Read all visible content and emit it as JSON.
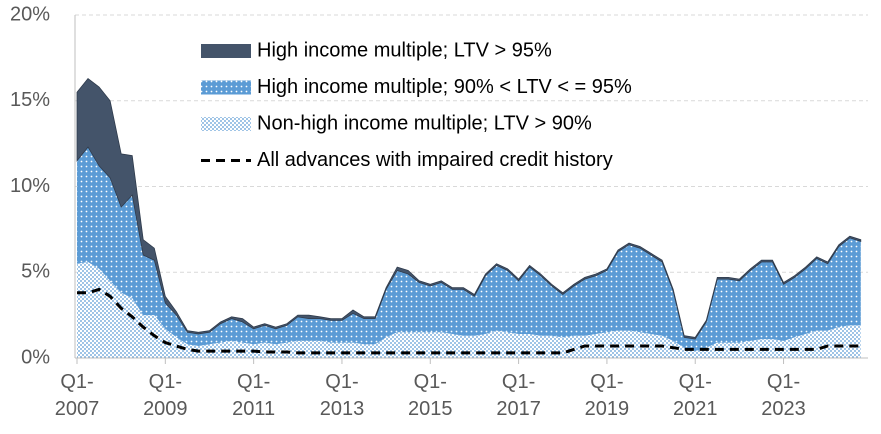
{
  "chart_data": {
    "type": "stacked_area",
    "categories": [
      "Q1-2007",
      null,
      null,
      null,
      null,
      null,
      null,
      null,
      "Q1-2009",
      null,
      null,
      null,
      null,
      null,
      null,
      null,
      "Q1-2011",
      null,
      null,
      null,
      null,
      null,
      null,
      null,
      "Q1-2013",
      null,
      null,
      null,
      null,
      null,
      null,
      null,
      "Q1-2015",
      null,
      null,
      null,
      null,
      null,
      null,
      null,
      "Q1-2017",
      null,
      null,
      null,
      null,
      null,
      null,
      null,
      "Q1-2019",
      null,
      null,
      null,
      null,
      null,
      null,
      null,
      "Q1-2021",
      null,
      null,
      null,
      null,
      null,
      null,
      null,
      "Q1-2023",
      null,
      null,
      null,
      null,
      null,
      null,
      null
    ],
    "series": [
      {
        "name": "High income multiple; LTV > 95%",
        "color": "#44546a",
        "fill": "solid",
        "values": [
          4.0,
          4.0,
          4.6,
          4.5,
          3.1,
          2.3,
          0.9,
          0.7,
          0.4,
          0.2,
          0.1,
          0.1,
          0.1,
          0.1,
          0.1,
          0.2,
          0.1,
          0.1,
          0.1,
          0.1,
          0.1,
          0.2,
          0.1,
          0.1,
          0.1,
          0.2,
          0.1,
          0.1,
          0.1,
          0.2,
          0.2,
          0.1,
          0.1,
          0.1,
          0.1,
          0.1,
          0.1,
          0.1,
          0.1,
          0.1,
          0.1,
          0.1,
          0.1,
          0.1,
          0.1,
          0.1,
          0.1,
          0.1,
          0.1,
          0.1,
          0.1,
          0.1,
          0.1,
          0.1,
          0.1,
          0.1,
          0.1,
          0.1,
          0.1,
          0.1,
          0.1,
          0.1,
          0.1,
          0.1,
          0.1,
          0.1,
          0.1,
          0.1,
          0.1,
          0.1,
          0.1,
          0.1
        ]
      },
      {
        "name": "High income multiple; 90% < LTV < = 95%",
        "color": "#5b9bd5",
        "fill": "dotted",
        "values": [
          6.0,
          6.7,
          6.0,
          6.0,
          5.0,
          6.0,
          3.5,
          3.2,
          1.5,
          1.3,
          0.7,
          0.7,
          0.7,
          1.1,
          1.3,
          1.2,
          0.9,
          1.0,
          0.9,
          1.0,
          1.4,
          1.3,
          1.3,
          1.3,
          1.3,
          1.7,
          1.5,
          1.5,
          2.8,
          3.6,
          3.4,
          2.9,
          2.7,
          2.9,
          2.6,
          2.7,
          2.3,
          3.4,
          3.8,
          3.6,
          3.1,
          3.9,
          3.5,
          2.9,
          2.5,
          2.9,
          3.3,
          3.4,
          3.6,
          4.6,
          5.0,
          4.9,
          4.6,
          4.3,
          2.9,
          0.6,
          0.7,
          1.5,
          3.7,
          3.7,
          3.6,
          4.1,
          4.5,
          4.5,
          3.3,
          3.5,
          3.8,
          4.2,
          3.9,
          4.7,
          5.1,
          4.9
        ]
      },
      {
        "name": "Non-high income multiple; LTV > 90%",
        "color": "#5b9bd5",
        "fill": "light-dotted",
        "values": [
          5.5,
          5.6,
          5.2,
          4.5,
          3.8,
          3.5,
          2.5,
          2.5,
          1.7,
          1.2,
          0.8,
          0.7,
          0.8,
          0.9,
          1.0,
          0.9,
          0.8,
          0.9,
          0.8,
          0.9,
          1.0,
          1.0,
          1.0,
          0.9,
          0.9,
          0.9,
          0.8,
          0.8,
          1.2,
          1.5,
          1.5,
          1.5,
          1.5,
          1.5,
          1.4,
          1.3,
          1.3,
          1.4,
          1.6,
          1.5,
          1.4,
          1.4,
          1.3,
          1.3,
          1.2,
          1.3,
          1.3,
          1.4,
          1.5,
          1.6,
          1.6,
          1.5,
          1.4,
          1.3,
          1.0,
          0.6,
          0.4,
          0.6,
          0.9,
          0.9,
          0.9,
          1.0,
          1.1,
          1.1,
          1.0,
          1.2,
          1.4,
          1.6,
          1.6,
          1.8,
          1.9,
          1.9
        ]
      },
      {
        "name": "All advances with impaired credit history",
        "color": "#000000",
        "line_style": "dashed",
        "stacked": false,
        "values": [
          3.8,
          3.8,
          4.0,
          3.6,
          2.9,
          2.4,
          1.8,
          1.3,
          0.9,
          0.7,
          0.5,
          0.4,
          0.4,
          0.4,
          0.4,
          0.4,
          0.4,
          0.35,
          0.35,
          0.35,
          0.3,
          0.3,
          0.3,
          0.3,
          0.3,
          0.3,
          0.3,
          0.3,
          0.3,
          0.3,
          0.3,
          0.3,
          0.3,
          0.3,
          0.3,
          0.3,
          0.3,
          0.3,
          0.3,
          0.3,
          0.3,
          0.3,
          0.3,
          0.3,
          0.3,
          0.5,
          0.7,
          0.7,
          0.7,
          0.7,
          0.7,
          0.7,
          0.7,
          0.7,
          0.6,
          0.5,
          0.5,
          0.5,
          0.5,
          0.5,
          0.5,
          0.5,
          0.5,
          0.5,
          0.5,
          0.5,
          0.5,
          0.5,
          0.7,
          0.7,
          0.7,
          0.7
        ]
      }
    ],
    "ylim": [
      0,
      20
    ],
    "yticks": [
      {
        "value": 0,
        "label": "0%"
      },
      {
        "value": 5,
        "label": "5%"
      },
      {
        "value": 10,
        "label": "10%"
      },
      {
        "value": 15,
        "label": "15%"
      },
      {
        "value": 20,
        "label": "20%"
      }
    ],
    "grid": true,
    "legend": "top"
  }
}
